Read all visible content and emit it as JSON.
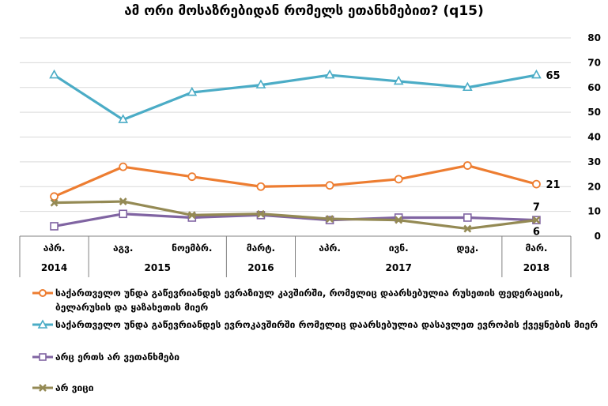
{
  "chart_data": {
    "type": "line",
    "title": "ამ ორი მოსაზრებიდან რომელს ეთანხმებით? (q15)",
    "xlabel": "",
    "ylabel": "",
    "ylim": [
      0,
      80
    ],
    "yticks": [
      "0",
      "10",
      "20",
      "30",
      "40",
      "50",
      "60",
      "70",
      "80"
    ],
    "y_axis_position": "right",
    "grid": true,
    "legend_position": "bottom",
    "categories": [
      "აპრ.",
      "აგვ.",
      "ნოემბრ.",
      "მარტ.",
      "აპრ.",
      "ივნ.",
      "დეკ.",
      "მარ."
    ],
    "years": [
      {
        "label": "2014",
        "span": 1
      },
      {
        "label": "2015",
        "span": 2
      },
      {
        "label": "2016",
        "span": 1
      },
      {
        "label": "2017",
        "span": 3
      },
      {
        "label": "2018",
        "span": 1
      }
    ],
    "series": [
      {
        "name": "საქართველო უნდა გაწევრიანდეს ევრაზიულ კავშირში, რომელიც დაარსებულია რუსეთის ფედერაციის, ბელარუსის და ყაზახეთის მიერ",
        "values": [
          16,
          28,
          24,
          20,
          20.5,
          23,
          28.5,
          21
        ],
        "color": "#ED7D31",
        "marker": "circle",
        "end_label": "21"
      },
      {
        "name": "საქართველო უნდა გაწევრიანდეს ევროკავშირში რომელიც დაარსებულია დასავლეთ ევროპის ქვეყნების მიერ",
        "values": [
          65,
          47,
          58,
          61,
          65,
          62.5,
          60,
          65
        ],
        "color": "#4BACC6",
        "marker": "triangle",
        "end_label": "65"
      },
      {
        "name": "არც ერთს არ ვეთანხმები",
        "values": [
          4,
          9,
          7.5,
          8.5,
          6.5,
          7.5,
          7.5,
          6.5
        ],
        "color": "#8064A2",
        "marker": "square",
        "end_label": "7"
      },
      {
        "name": "არ ვიცი",
        "values": [
          13.5,
          14,
          8.5,
          9,
          7,
          6.5,
          3,
          6.5
        ],
        "color": "#948A54",
        "marker": "x",
        "end_label": "6"
      }
    ]
  }
}
